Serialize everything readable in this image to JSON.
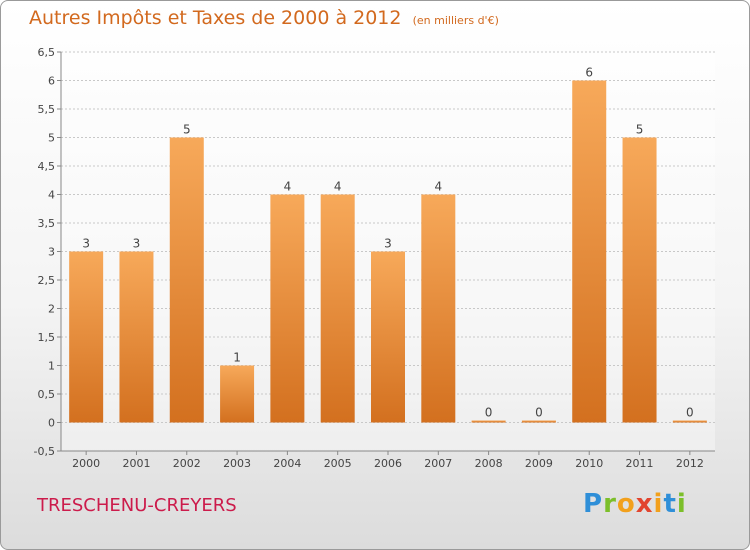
{
  "header": {
    "title": "Autres Impôts et Taxes de 2000 à 2012",
    "unit": "(en milliers d'€)"
  },
  "footer": {
    "commune": "TRESCHENU-CREYERS",
    "logo_letters": [
      "P",
      "r",
      "o",
      "x",
      "i",
      "t",
      "i"
    ]
  },
  "colors": {
    "bar_light": "#f7a95a",
    "bar_dark": "#d3701f",
    "title": "#d2691e",
    "commune": "#cc1b4b",
    "grid": "#c8c8c8"
  },
  "chart_data": {
    "type": "bar",
    "categories": [
      "2000",
      "2001",
      "2002",
      "2003",
      "2004",
      "2005",
      "2006",
      "2007",
      "2008",
      "2009",
      "2010",
      "2011",
      "2012"
    ],
    "values": [
      3,
      3,
      5,
      1,
      4,
      4,
      3,
      4,
      0,
      0,
      6,
      5,
      0
    ],
    "data_labels": [
      "3",
      "3",
      "5",
      "1",
      "4",
      "4",
      "3",
      "4",
      "0",
      "0",
      "6",
      "5",
      "0"
    ],
    "y_ticks": [
      "-0,5",
      "0",
      "0,5",
      "1",
      "1,5",
      "2",
      "2,5",
      "3",
      "3,5",
      "4",
      "4,5",
      "5",
      "5,5",
      "6",
      "6,5"
    ],
    "ylim": [
      -0.5,
      6.5
    ],
    "grid": true,
    "legend": "none"
  }
}
